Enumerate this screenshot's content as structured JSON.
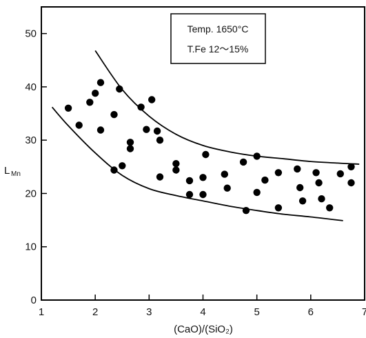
{
  "chart_data": {
    "type": "scatter",
    "xlabel": "(CaO)/(SiO₂)",
    "ylabel_main": "L",
    "ylabel_sub": "Mn",
    "xlim": [
      1,
      7
    ],
    "ylim": [
      0,
      55
    ],
    "xticks": [
      1,
      2,
      3,
      4,
      5,
      6,
      7
    ],
    "yticks": [
      0,
      10,
      20,
      30,
      40,
      50
    ],
    "grid": false,
    "annotation": {
      "line1": "Temp. 1650°C",
      "line2": "T.Fe 12〜15%"
    },
    "points": [
      {
        "x": 1.5,
        "y": 36
      },
      {
        "x": 1.7,
        "y": 32.8
      },
      {
        "x": 1.9,
        "y": 37.1
      },
      {
        "x": 2.0,
        "y": 38.8
      },
      {
        "x": 2.1,
        "y": 40.8
      },
      {
        "x": 2.1,
        "y": 31.9
      },
      {
        "x": 2.35,
        "y": 34.8
      },
      {
        "x": 2.35,
        "y": 24.4
      },
      {
        "x": 2.45,
        "y": 39.6
      },
      {
        "x": 2.5,
        "y": 25.2
      },
      {
        "x": 2.65,
        "y": 29.6
      },
      {
        "x": 2.65,
        "y": 28.4
      },
      {
        "x": 2.85,
        "y": 36.2
      },
      {
        "x": 2.95,
        "y": 32
      },
      {
        "x": 3.05,
        "y": 37.6
      },
      {
        "x": 3.15,
        "y": 31.7
      },
      {
        "x": 3.2,
        "y": 30
      },
      {
        "x": 3.2,
        "y": 23.1
      },
      {
        "x": 3.5,
        "y": 25.6
      },
      {
        "x": 3.5,
        "y": 24.4
      },
      {
        "x": 3.75,
        "y": 22.4
      },
      {
        "x": 3.75,
        "y": 19.8
      },
      {
        "x": 4.0,
        "y": 23
      },
      {
        "x": 4.0,
        "y": 19.8
      },
      {
        "x": 4.05,
        "y": 27.3
      },
      {
        "x": 4.4,
        "y": 23.6
      },
      {
        "x": 4.45,
        "y": 21
      },
      {
        "x": 4.75,
        "y": 25.9
      },
      {
        "x": 4.8,
        "y": 16.8
      },
      {
        "x": 5.0,
        "y": 27
      },
      {
        "x": 5.0,
        "y": 20.2
      },
      {
        "x": 5.15,
        "y": 22.5
      },
      {
        "x": 5.4,
        "y": 23.9
      },
      {
        "x": 5.4,
        "y": 17.3
      },
      {
        "x": 5.75,
        "y": 24.6
      },
      {
        "x": 5.8,
        "y": 21.1
      },
      {
        "x": 5.85,
        "y": 18.6
      },
      {
        "x": 6.1,
        "y": 23.9
      },
      {
        "x": 6.15,
        "y": 22
      },
      {
        "x": 6.2,
        "y": 19
      },
      {
        "x": 6.35,
        "y": 17.3
      },
      {
        "x": 6.55,
        "y": 23.7
      },
      {
        "x": 6.75,
        "y": 25
      },
      {
        "x": 6.75,
        "y": 22
      }
    ],
    "bounds": [
      {
        "name": "upper",
        "points": [
          [
            2.0,
            46.8
          ],
          [
            2.5,
            39.5
          ],
          [
            3.0,
            34.5
          ],
          [
            3.5,
            31.1
          ],
          [
            4.0,
            29.0
          ],
          [
            4.5,
            27.8
          ],
          [
            5.0,
            27.0
          ],
          [
            5.5,
            26.5
          ],
          [
            6.0,
            26.0
          ],
          [
            6.5,
            25.7
          ],
          [
            6.9,
            25.5
          ]
        ]
      },
      {
        "name": "lower",
        "points": [
          [
            1.2,
            36.2
          ],
          [
            1.5,
            32.7
          ],
          [
            2.0,
            27.6
          ],
          [
            2.5,
            23.4
          ],
          [
            3.0,
            20.9
          ],
          [
            3.5,
            19.6
          ],
          [
            4.0,
            18.6
          ],
          [
            4.5,
            17.6
          ],
          [
            5.0,
            16.8
          ],
          [
            5.5,
            16.1
          ],
          [
            6.0,
            15.6
          ],
          [
            6.6,
            14.9
          ]
        ]
      }
    ]
  }
}
